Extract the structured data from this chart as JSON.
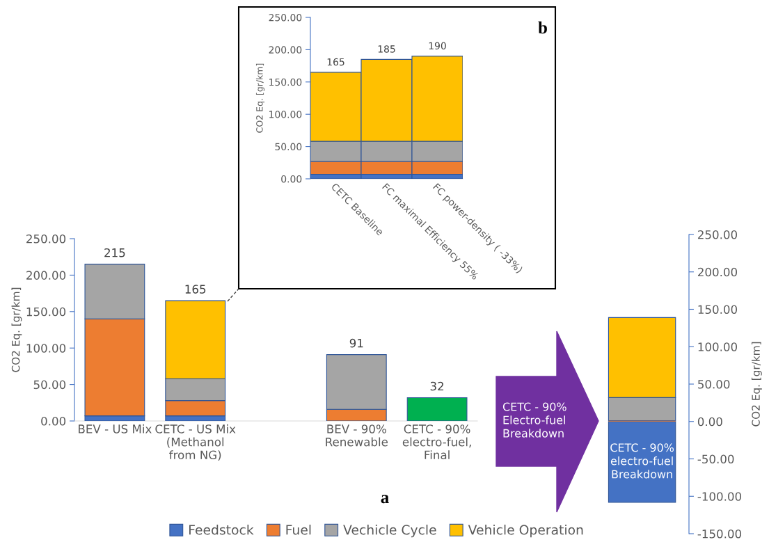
{
  "chart_data": [
    {
      "type": "bar",
      "stacked": true,
      "ylabel": "CO2 Eq. [gr/km]",
      "categories": [
        "BEV - US Mix",
        "CETC - US Mix\n(Methanol\nfrom NG)",
        null,
        "BEV - 90%\nRenewable",
        "CETC - 90%\nelectro-fuel,\nFinal"
      ],
      "series": [
        {
          "name": "Feedstock",
          "color": "#4472c4",
          "values": [
            7,
            7,
            null,
            null,
            null
          ]
        },
        {
          "name": "Fuel",
          "color": "#ed7d31",
          "values": [
            133,
            21,
            null,
            16,
            null
          ]
        },
        {
          "name": "Vechicle Cycle",
          "color": "#a5a5a5",
          "values": [
            75,
            30,
            null,
            75,
            null
          ]
        },
        {
          "name": "Vehicle Operation",
          "color": "#ffc000",
          "values": [
            null,
            107,
            null,
            null,
            null
          ]
        },
        {
          "color": "#00b050",
          "values": [
            null,
            null,
            null,
            null,
            32
          ]
        }
      ],
      "totals": [
        "215",
        "165",
        null,
        "91",
        "32"
      ],
      "ylim": [
        0,
        250
      ],
      "yticks": [
        {
          "value": 0,
          "label": "0.00"
        },
        {
          "value": 50,
          "label": "50.00"
        },
        {
          "value": 100,
          "label": "100.00"
        },
        {
          "value": 150,
          "label": "150.00"
        },
        {
          "value": 200,
          "label": "200.00"
        },
        {
          "value": 250,
          "label": "250.00"
        }
      ],
      "legend": "bottom",
      "annotations": [
        "a"
      ]
    },
    {
      "type": "bar",
      "stacked": true,
      "ylabel": "CO2 Eq. [gr/km]",
      "categories": [
        "CETC Baseline",
        "FC maximal Efficiency 55%",
        "FC power-density ( -33%)"
      ],
      "series": [
        {
          "color": "#4472c4",
          "values": [
            7,
            7,
            7
          ]
        },
        {
          "color": "#ed7d31",
          "values": [
            20,
            20,
            20
          ]
        },
        {
          "color": "#a5a5a5",
          "values": [
            31,
            31,
            31
          ]
        },
        {
          "color": "#ffc000",
          "values": [
            107,
            127,
            132
          ]
        }
      ],
      "totals": [
        "165",
        "185",
        "190"
      ],
      "ylim": [
        0,
        250
      ],
      "yticks": [
        {
          "value": 0,
          "label": "0.00"
        },
        {
          "value": 50,
          "label": "50.00"
        },
        {
          "value": 100,
          "label": "100.00"
        },
        {
          "value": 150,
          "label": "150.00"
        },
        {
          "value": 200,
          "label": "200.00"
        },
        {
          "value": 250,
          "label": "250.00"
        }
      ],
      "annotations": [
        "b"
      ]
    },
    {
      "type": "bar",
      "stacked": true,
      "ylabel": "CO2 Eq. [gr/km]",
      "categories": [
        null
      ],
      "series": [
        {
          "color": "#4472c4",
          "values": [
            -108
          ]
        },
        {
          "color": "#ed7d31",
          "values": [
            1
          ]
        },
        {
          "color": "#a5a5a5",
          "values": [
            31
          ]
        },
        {
          "color": "#ffc000",
          "values": [
            107
          ]
        }
      ],
      "ylim": [
        -150,
        250
      ],
      "yticks": [
        {
          "value": -150,
          "label": "-150.00"
        },
        {
          "value": -100,
          "label": "-100.00"
        },
        {
          "value": -50,
          "label": "-50.00"
        },
        {
          "value": 0,
          "label": "0.00"
        },
        {
          "value": 50,
          "label": "50.00"
        },
        {
          "value": 100,
          "label": "100.00"
        },
        {
          "value": 150,
          "label": "150.00"
        },
        {
          "value": 200,
          "label": "200.00"
        },
        {
          "value": 250,
          "label": "250.00"
        }
      ],
      "annotations": [
        "CETC - 90%\nElectro-fuel\nBreakdown",
        "CETC - 90%\nelectro-fuel\nBreakdown"
      ]
    }
  ]
}
